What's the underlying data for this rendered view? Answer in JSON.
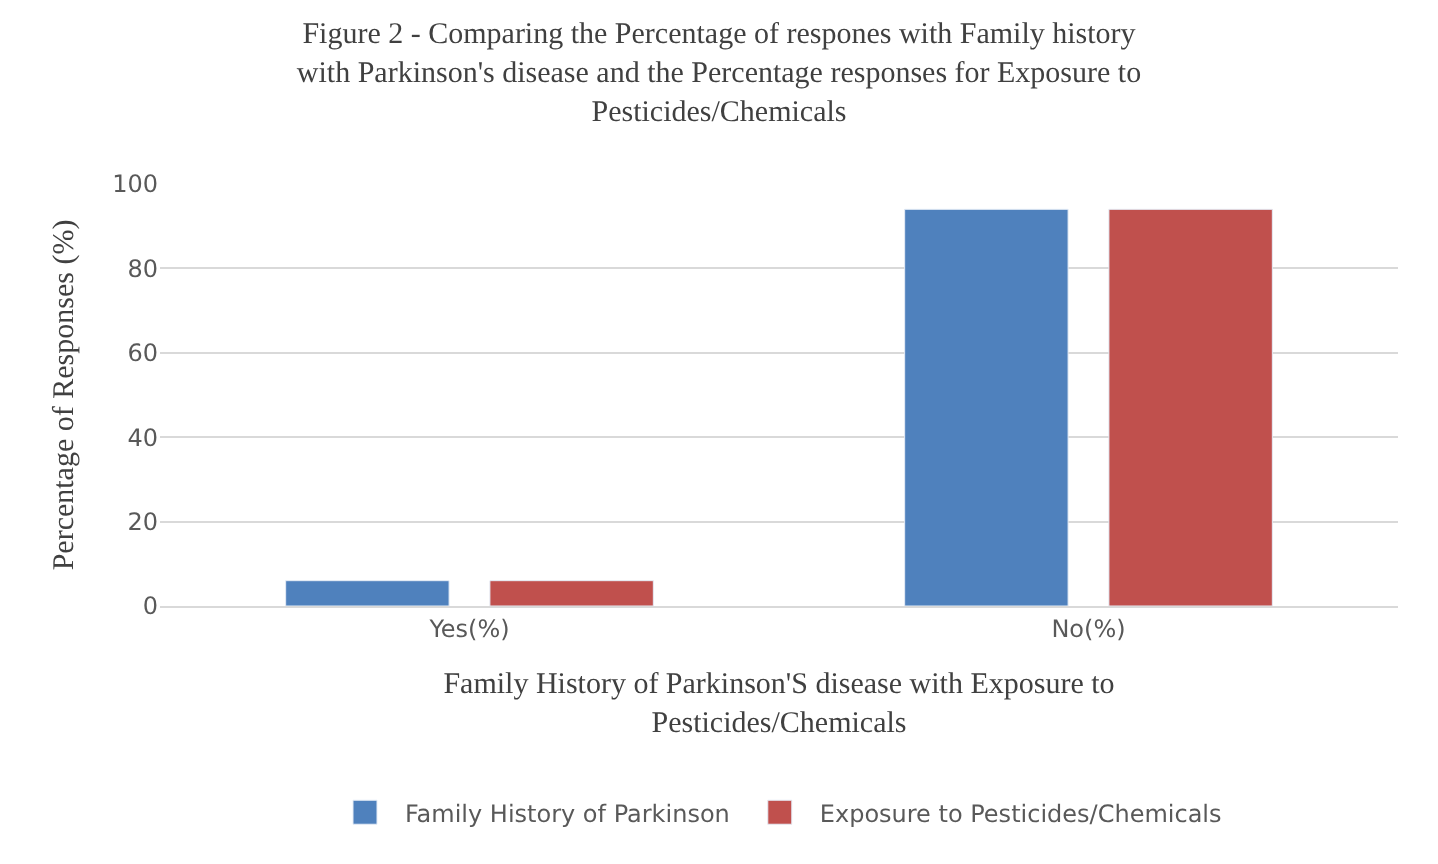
{
  "chart_data": {
    "type": "bar",
    "title": "Figure 2 - Comparing the Percentage of respones with Family history with Parkinson's disease and the Percentage responses for Exposure to Pesticides/Chemicals",
    "xlabel": "Family History of Parkinson'S disease with Exposure to Pesticides/Chemicals",
    "ylabel": "Percentage of Responses (%)",
    "categories": [
      "Yes(%)",
      "No(%)"
    ],
    "series": [
      {
        "name": "Family History of Parkinson",
        "color": "#4f81bd",
        "values": [
          6,
          94
        ]
      },
      {
        "name": "Exposure to Pesticides/Chemicals",
        "color": "#c0504d",
        "values": [
          6,
          94
        ]
      }
    ],
    "ylim": [
      0,
      100
    ],
    "yticks": [
      0,
      20,
      40,
      60,
      80,
      100
    ],
    "grid": "y",
    "legend": "bottom"
  }
}
